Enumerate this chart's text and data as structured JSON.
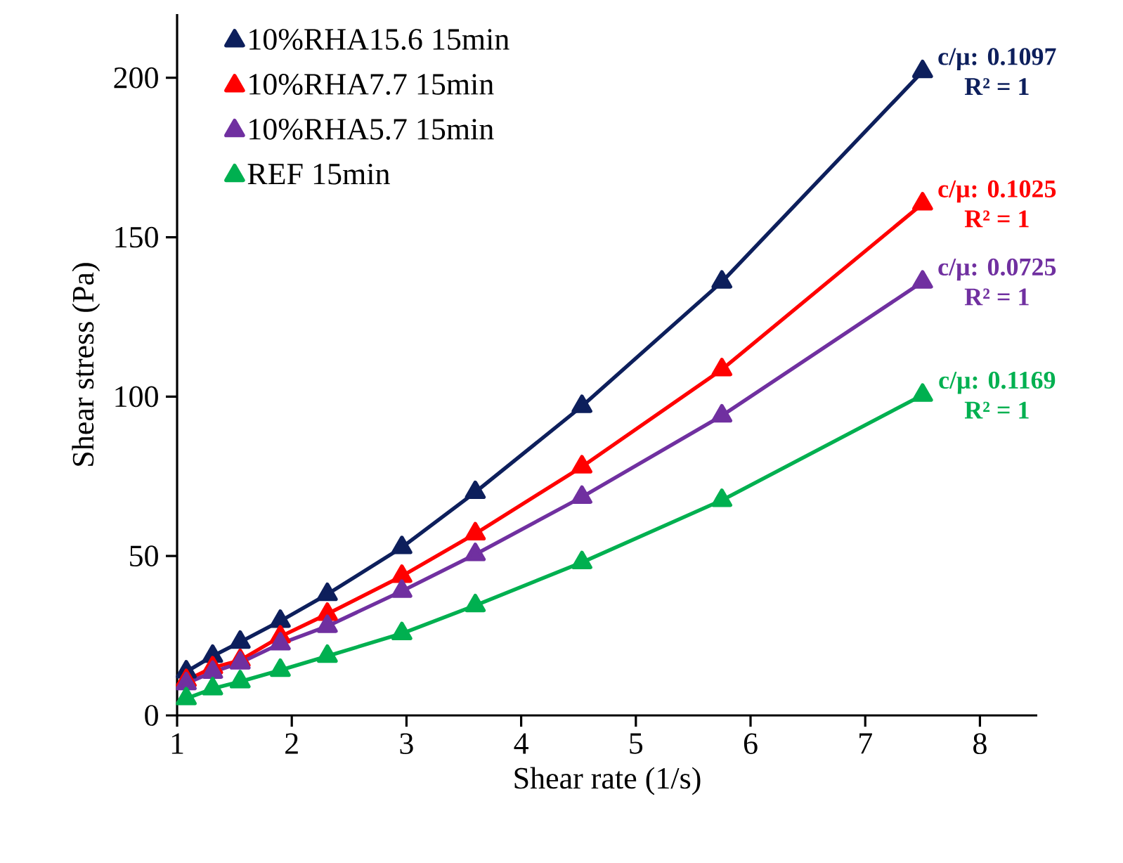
{
  "chart_data": {
    "type": "line",
    "xlabel": "Shear rate (1/s)",
    "ylabel": "Shear stress (Pa)",
    "x": [
      1.08,
      1.31,
      1.55,
      1.9,
      2.31,
      2.96,
      3.6,
      4.53,
      5.75,
      7.5
    ],
    "series": [
      {
        "name": "10%RHA15.6 15min",
        "color": "#0d1f5c",
        "values": [
          13.7,
          18.6,
          23,
          29.6,
          38,
          52.7,
          70,
          97,
          136,
          202
        ]
      },
      {
        "name": "10%RHA7.7 15min",
        "color": "#ff0000",
        "values": [
          11,
          15,
          17.3,
          24.7,
          31.8,
          43.7,
          57,
          78,
          108.5,
          160.5
        ]
      },
      {
        "name": "10%RHA5.7 15min",
        "color": "#7030a0",
        "values": [
          10,
          13.6,
          16.5,
          22.5,
          28,
          39,
          50.5,
          68.5,
          94,
          136
        ]
      },
      {
        "name": "REF 15min",
        "color": "#00b050",
        "values": [
          5.3,
          8.4,
          10.6,
          14.2,
          18.6,
          25.7,
          34.5,
          48,
          67.5,
          100.5
        ]
      }
    ],
    "annotations": [
      "c/μ: 0.1097",
      "R² = 1",
      "c/μ: 0.1025",
      "R² = 1",
      "c/μ: 0.0725",
      "R² = 1",
      "c/μ: 0.1169",
      "R² = 1"
    ],
    "xlim": [
      1,
      8.5
    ],
    "xticks": [
      1,
      2,
      3,
      4,
      5,
      6,
      7,
      8
    ],
    "ylim": [
      0,
      220
    ],
    "yticks": [
      0,
      50,
      100,
      150,
      200
    ],
    "legend": "top left",
    "marker": "triangle",
    "line_style": "solid"
  }
}
